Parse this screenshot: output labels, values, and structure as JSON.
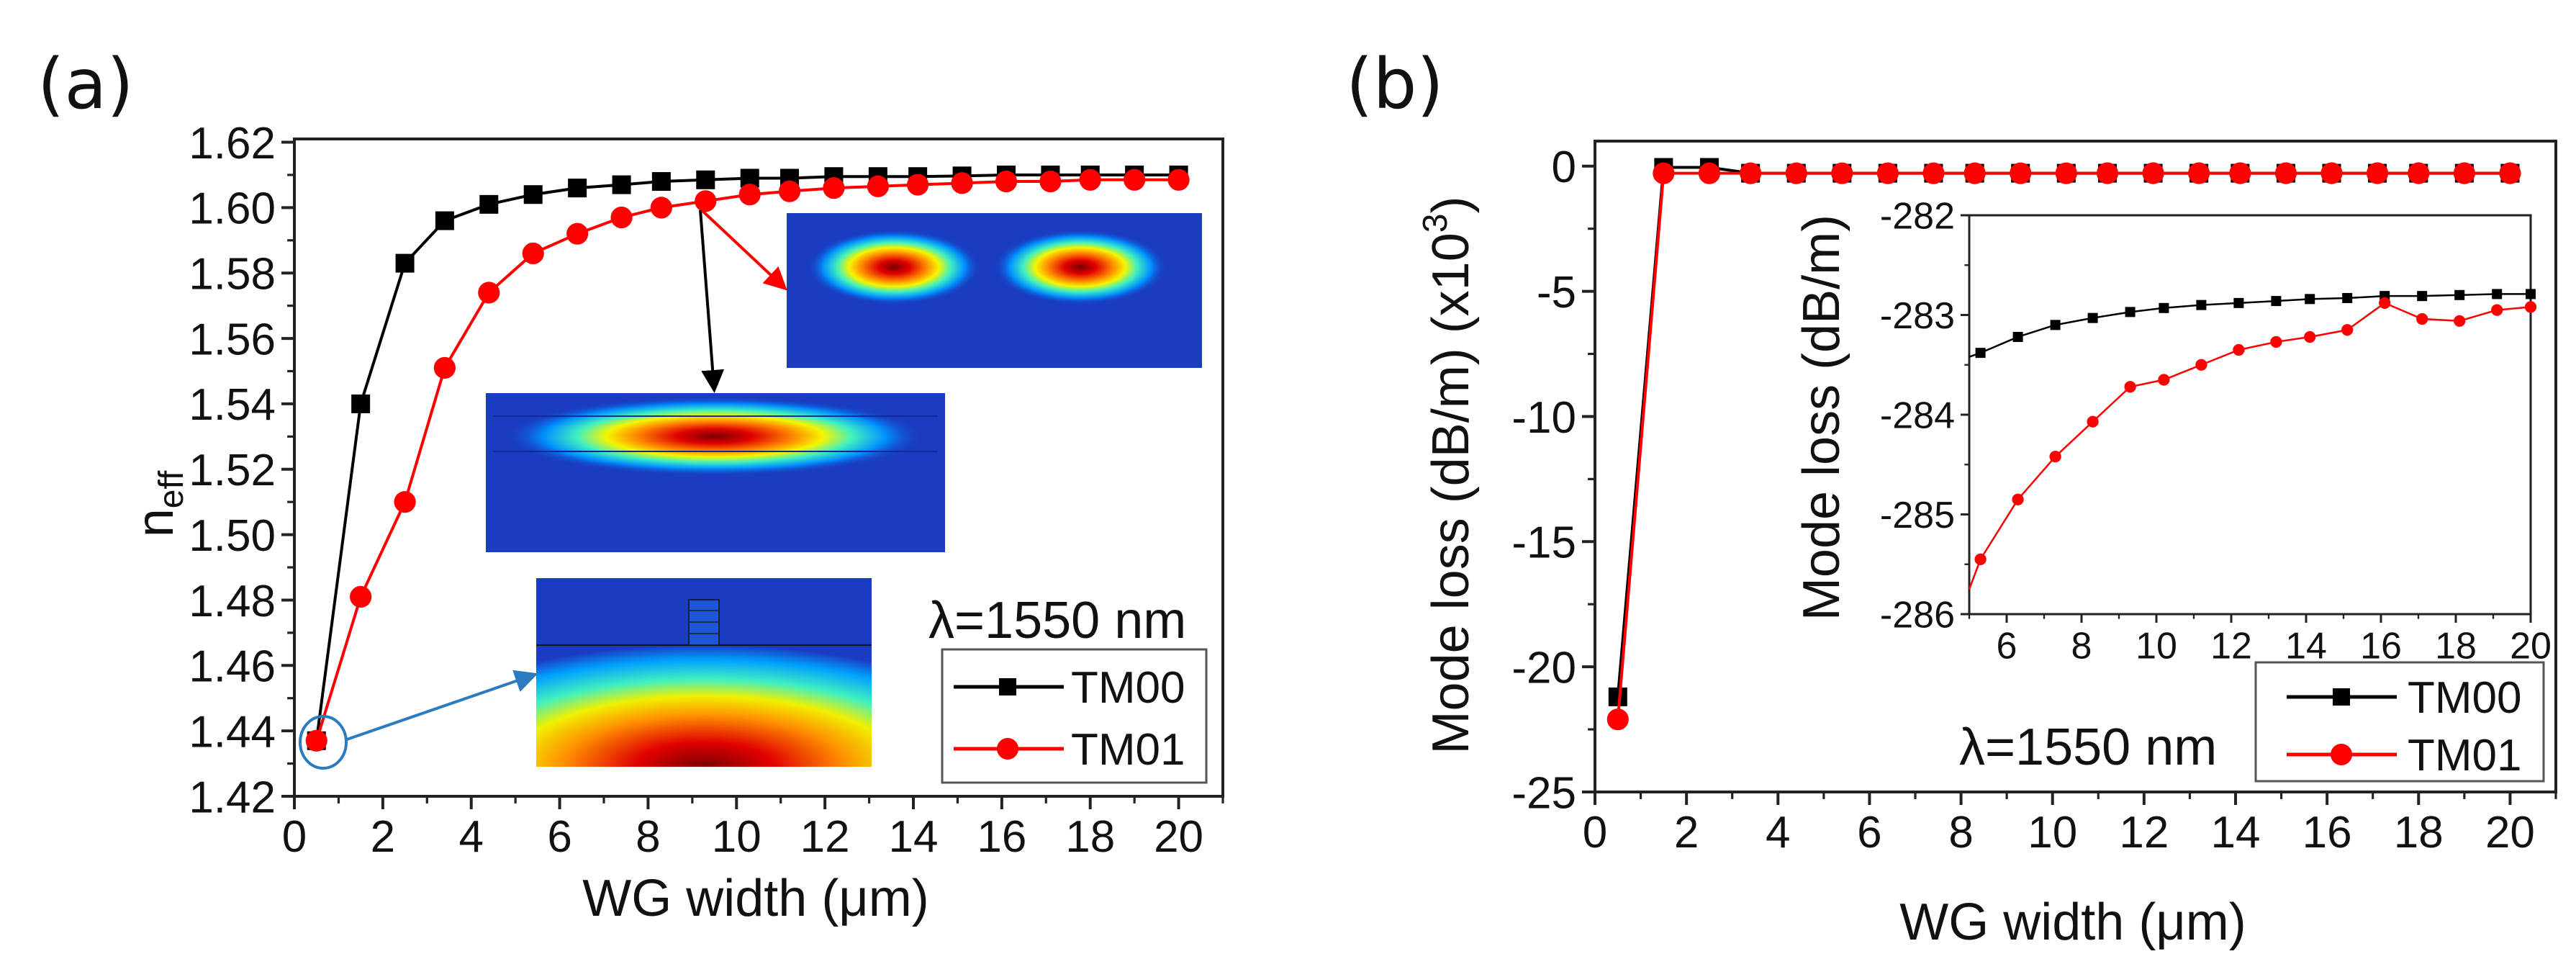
{
  "panels": {
    "a": {
      "label": "(a)"
    },
    "b": {
      "label": "(b)"
    }
  },
  "chart_data": [
    {
      "type": "line",
      "panel": "a",
      "title": "",
      "xlabel": "WG width (μm)",
      "ylabel": "n",
      "ylabel_sub": "eff",
      "xlim": [
        0,
        21
      ],
      "ylim": [
        1.42,
        1.621
      ],
      "xticks": [
        0,
        2,
        4,
        6,
        8,
        10,
        12,
        14,
        16,
        18,
        20
      ],
      "xtick_labels": [
        "0",
        "2",
        "4",
        "6",
        "8",
        "10",
        "12",
        "14",
        "16",
        "18",
        "20"
      ],
      "xminor": 1,
      "yticks": [
        1.42,
        1.44,
        1.46,
        1.48,
        1.5,
        1.52,
        1.54,
        1.56,
        1.58,
        1.6,
        1.62
      ],
      "ytick_labels": [
        "1.42",
        "1.44",
        "1.46",
        "1.48",
        "1.50",
        "1.52",
        "1.54",
        "1.56",
        "1.58",
        "1.60",
        "1.62"
      ],
      "yminor": 0.01,
      "annotation": "λ=1550 nm",
      "legend_position": "bottom-right",
      "series": [
        {
          "name": "TM00",
          "color": "#000000",
          "marker": "square",
          "x": [
            0.5,
            1.5,
            2.5,
            3.4,
            4.4,
            5.4,
            6.4,
            7.4,
            8.3,
            9.3,
            10.3,
            11.2,
            12.2,
            13.2,
            14.1,
            15.1,
            16.1,
            17.1,
            18.0,
            19.0,
            20.0
          ],
          "y": [
            1.437,
            1.54,
            1.583,
            1.596,
            1.601,
            1.604,
            1.606,
            1.607,
            1.608,
            1.6085,
            1.609,
            1.609,
            1.6095,
            1.6095,
            1.6095,
            1.6097,
            1.61,
            1.61,
            1.61,
            1.61,
            1.61
          ]
        },
        {
          "name": "TM01",
          "color": "#ff0000",
          "marker": "circle",
          "x": [
            0.5,
            1.5,
            2.5,
            3.4,
            4.4,
            5.4,
            6.4,
            7.4,
            8.3,
            9.3,
            10.3,
            11.2,
            12.2,
            13.2,
            14.1,
            15.1,
            16.1,
            17.1,
            18.0,
            19.0,
            20.0
          ],
          "y": [
            1.437,
            1.481,
            1.51,
            1.551,
            1.574,
            1.586,
            1.592,
            1.597,
            1.6,
            1.602,
            1.604,
            1.605,
            1.606,
            1.6065,
            1.607,
            1.6075,
            1.608,
            1.608,
            1.6085,
            1.6085,
            1.6085
          ]
        }
      ]
    },
    {
      "type": "line",
      "panel": "b",
      "title": "",
      "xlabel": "WG width (μm)",
      "ylabel": "Mode loss (dB/m) (x10",
      "ylabel_sup": "3",
      "ylabel_suffix": ")",
      "xlim": [
        0,
        21
      ],
      "ylim": [
        -25,
        1
      ],
      "xticks": [
        0,
        2,
        4,
        6,
        8,
        10,
        12,
        14,
        16,
        18,
        20
      ],
      "xtick_labels": [
        "0",
        "2",
        "4",
        "6",
        "8",
        "10",
        "12",
        "14",
        "16",
        "18",
        "20"
      ],
      "xminor": 1,
      "yticks": [
        -25,
        -20,
        -15,
        -10,
        -5,
        0
      ],
      "ytick_labels": [
        "-25",
        "-20",
        "-15",
        "-10",
        "-5",
        "0"
      ],
      "yminor": 2.5,
      "annotation": "λ=1550 nm",
      "legend_position": "bottom-right",
      "series": [
        {
          "name": "TM00",
          "color": "#000000",
          "marker": "square",
          "x": [
            0.5,
            1.5,
            2.5,
            3.4,
            4.4,
            5.4,
            6.4,
            7.4,
            8.3,
            9.3,
            10.3,
            11.2,
            12.2,
            13.2,
            14.1,
            15.1,
            16.1,
            17.1,
            18.0,
            19.0,
            20.0
          ],
          "y": [
            -21.2,
            -0.05,
            -0.05,
            -0.283,
            -0.283,
            -0.283,
            -0.283,
            -0.283,
            -0.283,
            -0.283,
            -0.283,
            -0.283,
            -0.283,
            -0.283,
            -0.283,
            -0.283,
            -0.283,
            -0.283,
            -0.283,
            -0.283,
            -0.283
          ]
        },
        {
          "name": "TM01",
          "color": "#ff0000",
          "marker": "circle",
          "x": [
            0.5,
            1.5,
            2.5,
            3.4,
            4.4,
            5.4,
            6.4,
            7.4,
            8.3,
            9.3,
            10.3,
            11.2,
            12.2,
            13.2,
            14.1,
            15.1,
            16.1,
            17.1,
            18.0,
            19.0,
            20.0
          ],
          "y": [
            -22.1,
            -0.285,
            -0.285,
            -0.284,
            -0.284,
            -0.284,
            -0.284,
            -0.284,
            -0.284,
            -0.284,
            -0.284,
            -0.283,
            -0.283,
            -0.283,
            -0.283,
            -0.283,
            -0.283,
            -0.283,
            -0.283,
            -0.283,
            -0.283
          ]
        }
      ]
    },
    {
      "type": "line",
      "panel": "b-inset",
      "title": "",
      "xlabel": "",
      "ylabel": "Mode loss (dB/m)",
      "xlim": [
        5,
        20
      ],
      "ylim": [
        -286,
        -282
      ],
      "xticks": [
        6,
        8,
        10,
        12,
        14,
        16,
        18,
        20
      ],
      "xtick_labels": [
        "6",
        "8",
        "10",
        "12",
        "14",
        "16",
        "18",
        "20"
      ],
      "xminor": 1,
      "yticks": [
        -286,
        -285,
        -284,
        -283,
        -282
      ],
      "ytick_labels": [
        "-286",
        "-285",
        "-284",
        "-283",
        "-282"
      ],
      "yminor": 0.5,
      "series": [
        {
          "name": "TM00",
          "color": "#000000",
          "marker": "square",
          "x": [
            5.0,
            5.3,
            6.3,
            7.3,
            8.3,
            9.3,
            10.2,
            11.2,
            12.2,
            13.2,
            14.1,
            15.1,
            16.1,
            17.1,
            18.1,
            19.1,
            20.0
          ],
          "y": [
            -283.42,
            -283.38,
            -283.22,
            -283.1,
            -283.03,
            -282.97,
            -282.93,
            -282.9,
            -282.88,
            -282.86,
            -282.84,
            -282.83,
            -282.81,
            -282.81,
            -282.8,
            -282.79,
            -282.79
          ]
        },
        {
          "name": "TM01",
          "color": "#ff0000",
          "marker": "circle",
          "x": [
            5.0,
            5.3,
            6.3,
            7.3,
            8.3,
            9.3,
            10.2,
            11.2,
            12.2,
            13.2,
            14.1,
            15.1,
            16.1,
            17.1,
            18.1,
            19.1,
            20.0
          ],
          "y": [
            -285.75,
            -285.45,
            -284.85,
            -284.42,
            -284.07,
            -283.72,
            -283.65,
            -283.5,
            -283.35,
            -283.27,
            -283.22,
            -283.15,
            -282.88,
            -283.04,
            -283.06,
            -282.95,
            -282.92
          ]
        }
      ]
    }
  ],
  "colors": {
    "tm00": "#000000",
    "tm01": "#ff0000",
    "annotation_blue": "#2a7bc0"
  }
}
